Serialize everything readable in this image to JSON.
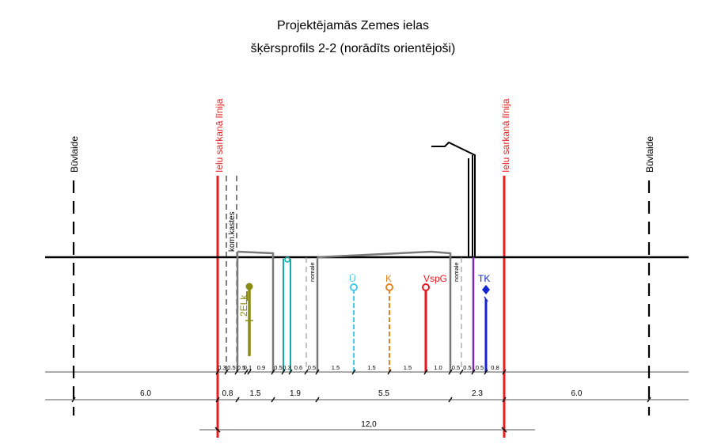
{
  "title": {
    "line1": "Projektējamās Zemes ielas",
    "line2": "šķērsprofils 2-2 (norādīts orientējoši)"
  },
  "labels": {
    "buvlaide": "Būvlaide",
    "sarkana_linija": "Ielu sarkanā līnija",
    "kom_kastes": "kom.kastes",
    "nomale": "nomale",
    "elk": "2ELk"
  },
  "utilities": [
    {
      "name": "Ū",
      "color": "#44c8e8"
    },
    {
      "name": "K",
      "color": "#e8821e"
    },
    {
      "name": "VspG",
      "color": "#e8141e"
    },
    {
      "name": "TK",
      "color": "#1424d2"
    }
  ],
  "colors": {
    "red_line": "#e81e1e",
    "ground": "#000000",
    "elk": "#8a8c14",
    "teal": "#14aaaa",
    "gray": "#7a7a7a",
    "purple": "#7a2ab4",
    "blue": "#1424d2"
  },
  "small_dims": [
    "0.3",
    "0.5",
    "0.5",
    "0.1",
    "0.9",
    "0.5",
    "0.3",
    "0.6",
    "0.5",
    "1.5",
    "1.5",
    "1.5",
    "1.0",
    "0.5",
    "0.5",
    "0.5",
    "0.8"
  ],
  "main_dims": [
    "6.0",
    "0.8",
    "1.5",
    "1.9",
    "5.5",
    "2.3",
    "6.0"
  ],
  "total_dim": "12,0"
}
